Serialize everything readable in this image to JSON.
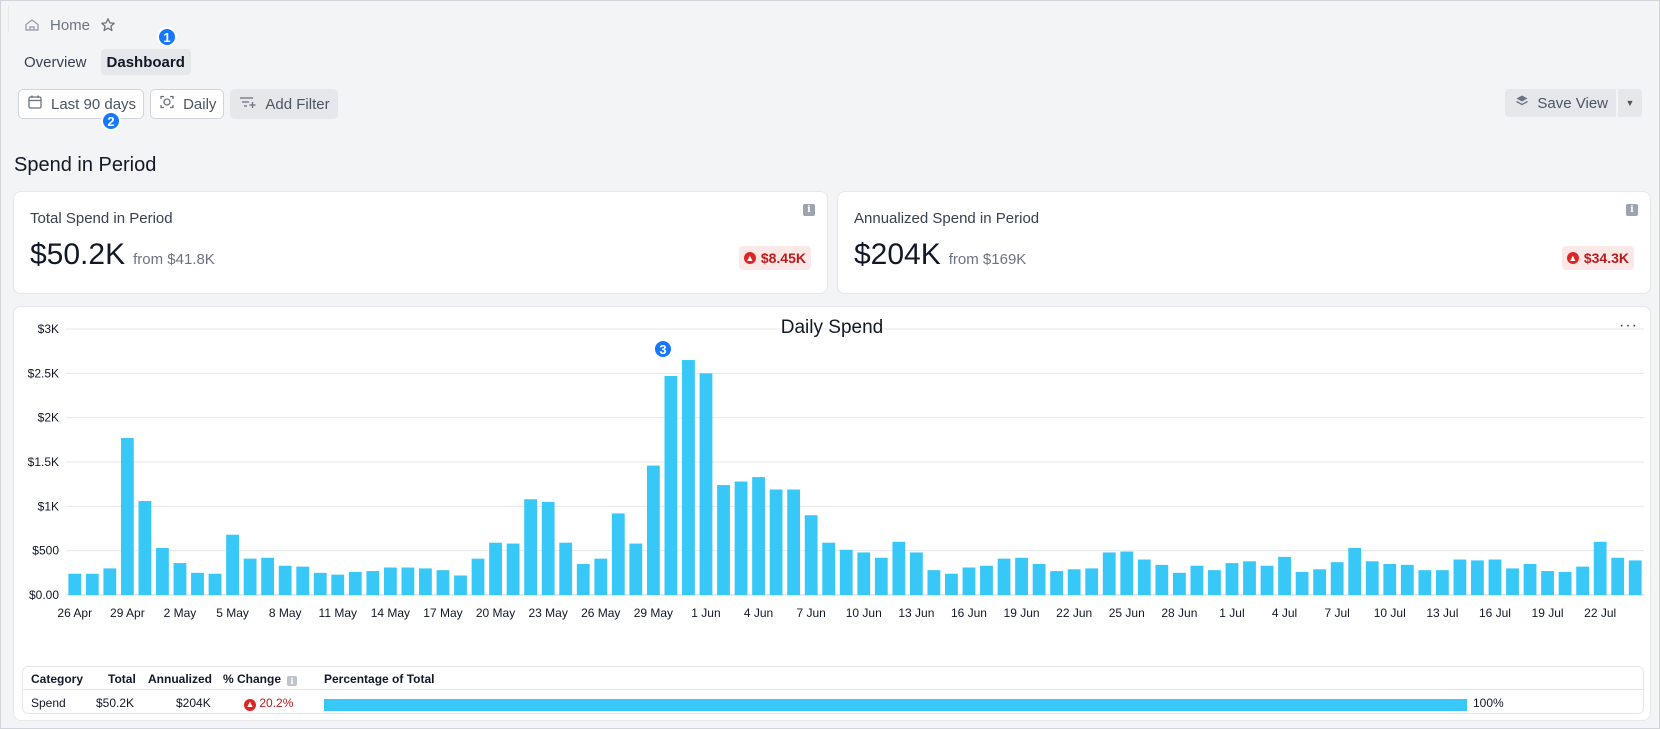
{
  "breadcrumb": {
    "home_label": "Home",
    "home_icon": "home-icon",
    "star_icon": "star-icon"
  },
  "tabs": [
    {
      "label": "Overview",
      "active": false
    },
    {
      "label": "Dashboard",
      "active": true
    }
  ],
  "badges": [
    "1",
    "2",
    "3"
  ],
  "filters": {
    "date_range": "Last 90 days",
    "granularity": "Daily",
    "add_filter": "Add Filter"
  },
  "save_view": {
    "label": "Save View"
  },
  "section_title": "Spend in Period",
  "cards": [
    {
      "label": "Total Spend in Period",
      "value": "$50.2K",
      "from": "from $41.8K",
      "delta": "$8.45K"
    },
    {
      "label": "Annualized Spend in Period",
      "value": "$204K",
      "from": "from $169K",
      "delta": "$34.3K"
    }
  ],
  "colors": {
    "bar": "#38c8f8",
    "accent": "#1677ff",
    "negative": "#b91c1c"
  },
  "chart_data": {
    "type": "bar",
    "title": "Daily Spend",
    "ylim": [
      0,
      3000
    ],
    "y_ticks": [
      {
        "value": 0,
        "label": "$0.00"
      },
      {
        "value": 500,
        "label": "$500"
      },
      {
        "value": 1000,
        "label": "$1K"
      },
      {
        "value": 1500,
        "label": "$1.5K"
      },
      {
        "value": 2000,
        "label": "$2K"
      },
      {
        "value": 2500,
        "label": "$2.5K"
      },
      {
        "value": 3000,
        "label": "$3K"
      }
    ],
    "x_tick_labels": [
      "26 Apr",
      "29 Apr",
      "2 May",
      "5 May",
      "8 May",
      "11 May",
      "14 May",
      "17 May",
      "20 May",
      "23 May",
      "26 May",
      "29 May",
      "1 Jun",
      "4 Jun",
      "7 Jun",
      "10 Jun",
      "13 Jun",
      "16 Jun",
      "19 Jun",
      "22 Jun",
      "25 Jun",
      "28 Jun",
      "1 Jul",
      "4 Jul",
      "7 Jul",
      "10 Jul",
      "13 Jul",
      "16 Jul",
      "19 Jul",
      "22 Jul"
    ],
    "x_tick_every": 3,
    "values": [
      240,
      240,
      300,
      1770,
      1060,
      530,
      360,
      250,
      240,
      680,
      410,
      420,
      330,
      320,
      250,
      230,
      260,
      270,
      310,
      310,
      300,
      280,
      220,
      410,
      590,
      580,
      1080,
      1050,
      590,
      350,
      410,
      920,
      580,
      1460,
      2470,
      2650,
      2500,
      1240,
      1280,
      1330,
      1190,
      1190,
      900,
      590,
      510,
      480,
      420,
      600,
      480,
      280,
      240,
      310,
      330,
      410,
      420,
      350,
      270,
      290,
      300,
      480,
      490,
      400,
      340,
      250,
      330,
      280,
      360,
      380,
      330,
      430,
      260,
      290,
      370,
      530,
      380,
      350,
      340,
      280,
      280,
      400,
      390,
      400,
      300,
      350,
      270,
      260,
      320,
      600,
      420,
      390
    ]
  },
  "table": {
    "headers": {
      "category": "Category",
      "total": "Total",
      "annualized": "Annualized",
      "pct_change": "% Change",
      "pct_total": "Percentage of Total"
    },
    "rows": [
      {
        "category": "Spend",
        "total": "$50.2K",
        "annualized": "$204K",
        "pct_change": "20.2%",
        "pct_total": "100%",
        "pct_total_value": 1.0
      }
    ]
  }
}
